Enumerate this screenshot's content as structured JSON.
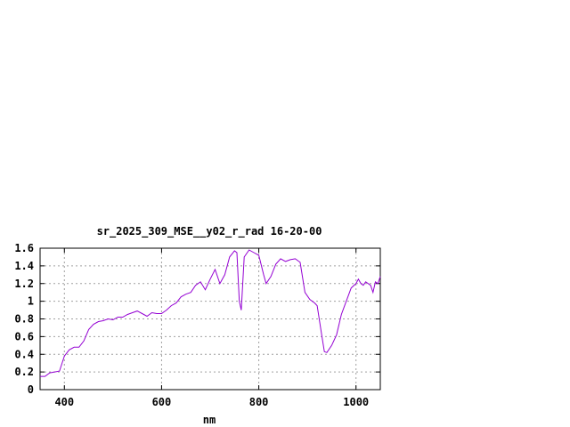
{
  "chart_data": {
    "type": "line",
    "title": "sr_2025_309_MSE__y02_r_rad 16-20-00",
    "xlabel": "nm",
    "ylabel": "",
    "xlim": [
      350,
      1050
    ],
    "ylim": [
      0,
      1.6
    ],
    "xticks": [
      400,
      600,
      800,
      1000
    ],
    "yticks": [
      0,
      0.2,
      0.4,
      0.6,
      0.8,
      1,
      1.2,
      1.4,
      1.6
    ],
    "grid": true,
    "line_color": "#9400d3",
    "series": [
      {
        "points": [
          [
            350,
            0.15
          ],
          [
            360,
            0.15
          ],
          [
            370,
            0.19
          ],
          [
            380,
            0.2
          ],
          [
            390,
            0.21
          ],
          [
            400,
            0.38
          ],
          [
            410,
            0.45
          ],
          [
            420,
            0.48
          ],
          [
            430,
            0.48
          ],
          [
            440,
            0.55
          ],
          [
            450,
            0.68
          ],
          [
            460,
            0.74
          ],
          [
            470,
            0.77
          ],
          [
            480,
            0.78
          ],
          [
            490,
            0.8
          ],
          [
            500,
            0.79
          ],
          [
            510,
            0.82
          ],
          [
            520,
            0.82
          ],
          [
            530,
            0.85
          ],
          [
            540,
            0.87
          ],
          [
            550,
            0.89
          ],
          [
            560,
            0.86
          ],
          [
            570,
            0.83
          ],
          [
            580,
            0.87
          ],
          [
            590,
            0.86
          ],
          [
            600,
            0.86
          ],
          [
            610,
            0.9
          ],
          [
            620,
            0.95
          ],
          [
            630,
            0.98
          ],
          [
            640,
            1.05
          ],
          [
            650,
            1.08
          ],
          [
            660,
            1.1
          ],
          [
            670,
            1.18
          ],
          [
            680,
            1.22
          ],
          [
            690,
            1.13
          ],
          [
            700,
            1.25
          ],
          [
            710,
            1.36
          ],
          [
            720,
            1.2
          ],
          [
            730,
            1.3
          ],
          [
            740,
            1.5
          ],
          [
            750,
            1.57
          ],
          [
            755,
            1.55
          ],
          [
            760,
            1.0
          ],
          [
            764,
            0.9
          ],
          [
            770,
            1.5
          ],
          [
            780,
            1.58
          ],
          [
            790,
            1.55
          ],
          [
            800,
            1.52
          ],
          [
            810,
            1.3
          ],
          [
            815,
            1.2
          ],
          [
            825,
            1.28
          ],
          [
            835,
            1.42
          ],
          [
            845,
            1.48
          ],
          [
            855,
            1.45
          ],
          [
            865,
            1.47
          ],
          [
            875,
            1.48
          ],
          [
            885,
            1.44
          ],
          [
            895,
            1.1
          ],
          [
            905,
            1.02
          ],
          [
            915,
            0.98
          ],
          [
            920,
            0.95
          ],
          [
            930,
            0.6
          ],
          [
            935,
            0.43
          ],
          [
            940,
            0.42
          ],
          [
            950,
            0.5
          ],
          [
            960,
            0.62
          ],
          [
            970,
            0.85
          ],
          [
            980,
            1.0
          ],
          [
            990,
            1.15
          ],
          [
            1000,
            1.2
          ],
          [
            1005,
            1.25
          ],
          [
            1010,
            1.2
          ],
          [
            1015,
            1.18
          ],
          [
            1020,
            1.22
          ],
          [
            1030,
            1.18
          ],
          [
            1035,
            1.1
          ],
          [
            1040,
            1.22
          ],
          [
            1045,
            1.2
          ],
          [
            1050,
            1.28
          ]
        ]
      }
    ]
  }
}
